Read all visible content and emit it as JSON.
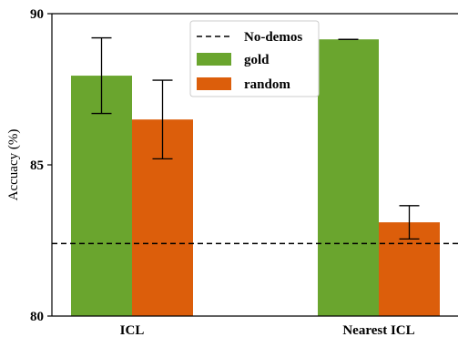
{
  "chart_data": {
    "type": "bar",
    "categories": [
      "ICL",
      "Nearest ICL"
    ],
    "series": [
      {
        "name": "gold",
        "color": "#6aa52e",
        "values": [
          87.95,
          89.15
        ],
        "error": [
          1.25,
          0.0
        ]
      },
      {
        "name": "random",
        "color": "#dc5e0b",
        "values": [
          86.5,
          83.1
        ],
        "error": [
          1.3,
          0.55
        ]
      }
    ],
    "reference_line": {
      "name": "No-demos",
      "value": 82.4,
      "style": "dashed",
      "color": "#000000"
    },
    "xlabel": "",
    "ylabel": "Accuacy (%)",
    "ylim": [
      80,
      90
    ],
    "yticks": [
      80,
      85,
      90
    ],
    "grid": false,
    "legend_position": "top-center"
  }
}
